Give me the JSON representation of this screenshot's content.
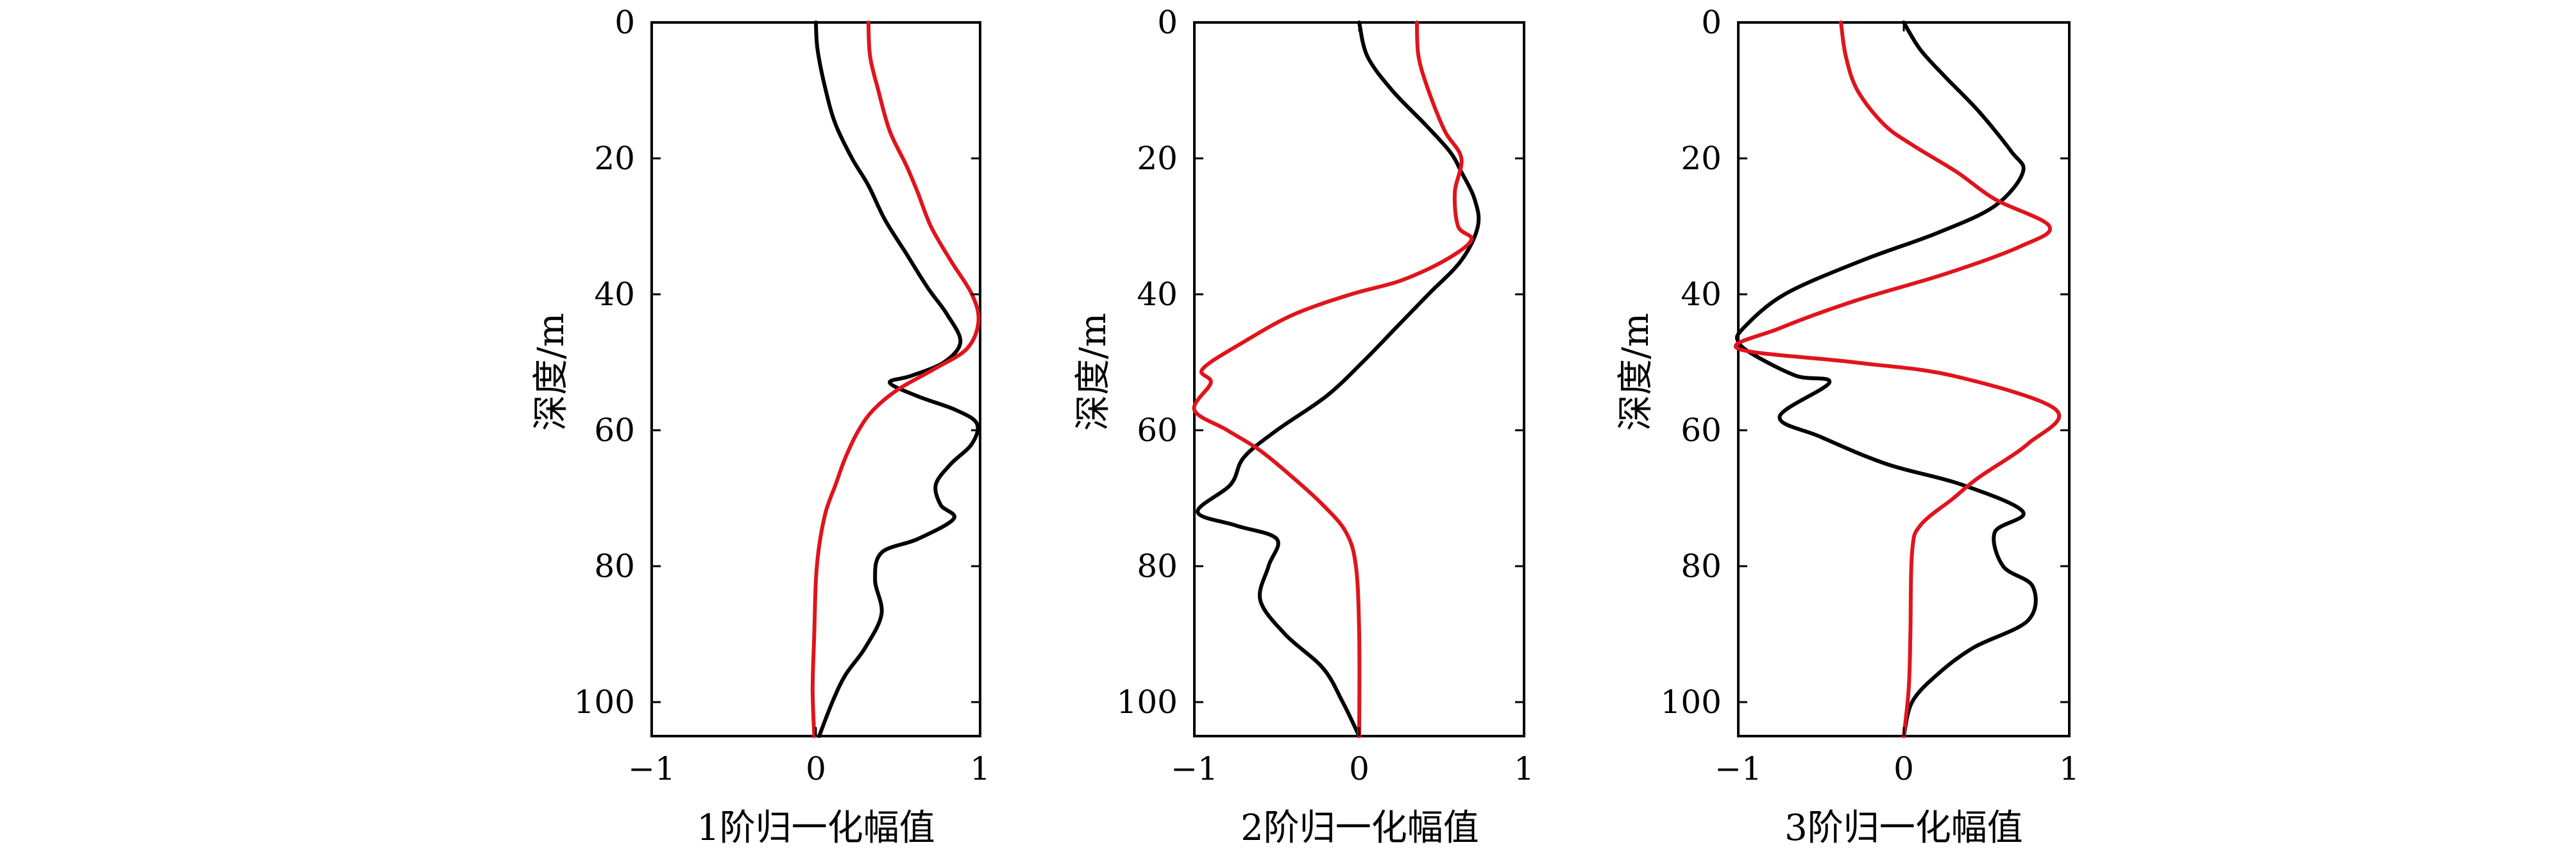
{
  "chart_data": [
    {
      "type": "line",
      "xlabel": "1阶归一化幅值",
      "ylabel": "深度/m",
      "xlim": [
        -1,
        1
      ],
      "ylim": [
        0,
        105
      ],
      "y_inverted": true,
      "xticks": [
        "−1",
        "0",
        "1"
      ],
      "yticks": [
        "0",
        "20",
        "40",
        "60",
        "80",
        "100"
      ],
      "grid": false,
      "series": [
        {
          "color": "#000000",
          "points": [
            [
              0,
              0
            ],
            [
              0.01,
              4
            ],
            [
              0.06,
              10
            ],
            [
              0.12,
              15
            ],
            [
              0.22,
              20
            ],
            [
              0.32,
              24
            ],
            [
              0.42,
              29
            ],
            [
              0.55,
              34
            ],
            [
              0.68,
              39
            ],
            [
              0.8,
              43
            ],
            [
              0.88,
              47
            ],
            [
              0.78,
              50
            ],
            [
              0.58,
              52
            ],
            [
              0.45,
              53
            ],
            [
              0.62,
              55
            ],
            [
              0.85,
              57
            ],
            [
              0.98,
              59
            ],
            [
              0.95,
              62
            ],
            [
              0.82,
              65
            ],
            [
              0.73,
              68
            ],
            [
              0.76,
              71
            ],
            [
              0.84,
              73
            ],
            [
              0.62,
              76
            ],
            [
              0.4,
              78
            ],
            [
              0.36,
              82
            ],
            [
              0.4,
              87
            ],
            [
              0.3,
              92
            ],
            [
              0.18,
              96
            ],
            [
              0.1,
              100
            ],
            [
              0.02,
              105
            ]
          ]
        },
        {
          "color": "#e0141c",
          "points": [
            [
              0.32,
              0
            ],
            [
              0.33,
              5
            ],
            [
              0.38,
              10
            ],
            [
              0.45,
              16
            ],
            [
              0.55,
              21
            ],
            [
              0.62,
              25
            ],
            [
              0.7,
              30
            ],
            [
              0.82,
              35
            ],
            [
              0.95,
              40
            ],
            [
              0.99,
              44
            ],
            [
              0.92,
              48
            ],
            [
              0.72,
              51
            ],
            [
              0.5,
              54
            ],
            [
              0.35,
              57
            ],
            [
              0.26,
              60
            ],
            [
              0.18,
              64
            ],
            [
              0.12,
              68
            ],
            [
              0.06,
              72
            ],
            [
              0.02,
              77
            ],
            [
              0.0,
              82
            ],
            [
              -0.01,
              90
            ],
            [
              -0.02,
              98
            ],
            [
              -0.01,
              105
            ]
          ]
        }
      ]
    },
    {
      "type": "line",
      "xlabel": "2阶归一化幅值",
      "ylabel": "深度/m",
      "xlim": [
        -1,
        1
      ],
      "ylim": [
        0,
        105
      ],
      "y_inverted": true,
      "xticks": [
        "−1",
        "0",
        "1"
      ],
      "yticks": [
        "0",
        "20",
        "40",
        "60",
        "80",
        "100"
      ],
      "grid": false,
      "series": [
        {
          "color": "#000000",
          "points": [
            [
              0,
              0
            ],
            [
              0.05,
              5
            ],
            [
              0.2,
              10
            ],
            [
              0.4,
              15
            ],
            [
              0.55,
              19
            ],
            [
              0.62,
              22
            ],
            [
              0.7,
              26
            ],
            [
              0.72,
              30
            ],
            [
              0.62,
              35
            ],
            [
              0.42,
              40
            ],
            [
              0.22,
              45
            ],
            [
              0.02,
              50
            ],
            [
              -0.2,
              55
            ],
            [
              -0.5,
              60
            ],
            [
              -0.7,
              64
            ],
            [
              -0.78,
              68
            ],
            [
              -0.98,
              72
            ],
            [
              -0.75,
              74
            ],
            [
              -0.5,
              76
            ],
            [
              -0.55,
              80
            ],
            [
              -0.6,
              85
            ],
            [
              -0.45,
              90
            ],
            [
              -0.22,
              95
            ],
            [
              -0.1,
              100
            ],
            [
              0,
              105
            ]
          ]
        },
        {
          "color": "#e0141c",
          "points": [
            [
              0.35,
              0
            ],
            [
              0.36,
              5
            ],
            [
              0.42,
              10
            ],
            [
              0.52,
              16
            ],
            [
              0.62,
              20
            ],
            [
              0.58,
              25
            ],
            [
              0.6,
              30
            ],
            [
              0.68,
              32
            ],
            [
              0.52,
              35
            ],
            [
              0.25,
              38
            ],
            [
              -0.05,
              40
            ],
            [
              -0.4,
              43
            ],
            [
              -0.7,
              47
            ],
            [
              -0.95,
              51
            ],
            [
              -0.9,
              53
            ],
            [
              -1.0,
              57
            ],
            [
              -0.8,
              60
            ],
            [
              -0.6,
              63
            ],
            [
              -0.4,
              67
            ],
            [
              -0.22,
              71
            ],
            [
              -0.08,
              75
            ],
            [
              -0.02,
              80
            ],
            [
              0,
              90
            ],
            [
              0,
              105
            ]
          ]
        }
      ]
    },
    {
      "type": "line",
      "xlabel": "3阶归一化幅值",
      "ylabel": "深度/m",
      "xlim": [
        -1,
        1
      ],
      "ylim": [
        0,
        105
      ],
      "y_inverted": true,
      "xticks": [
        "−1",
        "0",
        "1"
      ],
      "yticks": [
        "0",
        "20",
        "40",
        "60",
        "80",
        "100"
      ],
      "grid": false,
      "series": [
        {
          "color": "#000000",
          "points": [
            [
              0,
              0
            ],
            [
              0.1,
              4
            ],
            [
              0.25,
              8
            ],
            [
              0.45,
              13
            ],
            [
              0.65,
              19
            ],
            [
              0.72,
              22
            ],
            [
              0.55,
              27
            ],
            [
              0.2,
              31
            ],
            [
              -0.25,
              35
            ],
            [
              -0.72,
              40
            ],
            [
              -0.97,
              45
            ],
            [
              -1.0,
              47
            ],
            [
              -0.9,
              49
            ],
            [
              -0.65,
              52
            ],
            [
              -0.45,
              53
            ],
            [
              -0.75,
              58
            ],
            [
              -0.5,
              61
            ],
            [
              -0.1,
              65
            ],
            [
              0.35,
              68
            ],
            [
              0.72,
              72
            ],
            [
              0.55,
              75
            ],
            [
              0.6,
              80
            ],
            [
              0.78,
              83
            ],
            [
              0.75,
              88
            ],
            [
              0.42,
              92
            ],
            [
              0.2,
              96
            ],
            [
              0.05,
              100
            ],
            [
              0,
              105
            ]
          ]
        },
        {
          "color": "#e0141c",
          "points": [
            [
              -0.38,
              0
            ],
            [
              -0.35,
              5
            ],
            [
              -0.28,
              10
            ],
            [
              -0.12,
              15
            ],
            [
              0.05,
              18
            ],
            [
              0.32,
              22
            ],
            [
              0.55,
              26
            ],
            [
              0.88,
              30
            ],
            [
              0.7,
              33
            ],
            [
              0.25,
              37
            ],
            [
              -0.3,
              41
            ],
            [
              -0.75,
              45
            ],
            [
              -1.0,
              48
            ],
            [
              -0.3,
              50
            ],
            [
              0.3,
              52
            ],
            [
              0.92,
              57
            ],
            [
              0.75,
              62
            ],
            [
              0.45,
              67
            ],
            [
              0.3,
              70
            ],
            [
              0.1,
              74
            ],
            [
              0.05,
              78
            ],
            [
              0.04,
              90
            ],
            [
              0.03,
              98
            ],
            [
              0.0,
              105
            ]
          ]
        }
      ]
    }
  ]
}
